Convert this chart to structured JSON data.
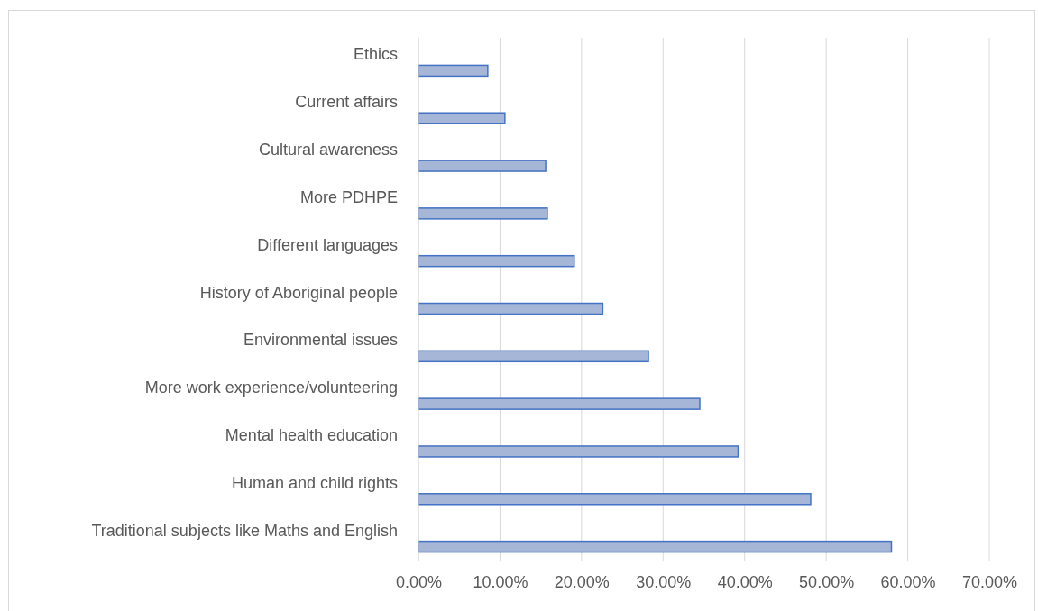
{
  "chart_data": {
    "type": "bar",
    "orientation": "horizontal",
    "categories": [
      "Ethics",
      "Current affairs",
      "Cultural awareness",
      "More PDHPE",
      "Different languages",
      "History of Aboriginal people",
      "Environmental issues",
      "More work experience/volunteering",
      "Mental health education",
      "Human and child rights",
      "Traditional subjects like Maths and English"
    ],
    "values": [
      8.5,
      10.6,
      15.6,
      15.8,
      19.1,
      22.6,
      28.2,
      34.5,
      39.2,
      48.1,
      58.0
    ],
    "color": "#a5b6d6",
    "xlim": [
      0,
      70
    ],
    "xticks": [
      {
        "value": 0,
        "label": "0.00%"
      },
      {
        "value": 10,
        "label": "10.00%"
      },
      {
        "value": 20,
        "label": "20.00%"
      },
      {
        "value": 30,
        "label": "30.00%"
      },
      {
        "value": 40,
        "label": "40.00%"
      },
      {
        "value": 50,
        "label": "50.00%"
      },
      {
        "value": 60,
        "label": "60.00%"
      },
      {
        "value": 70,
        "label": "70.00%"
      }
    ],
    "grid": "x"
  }
}
